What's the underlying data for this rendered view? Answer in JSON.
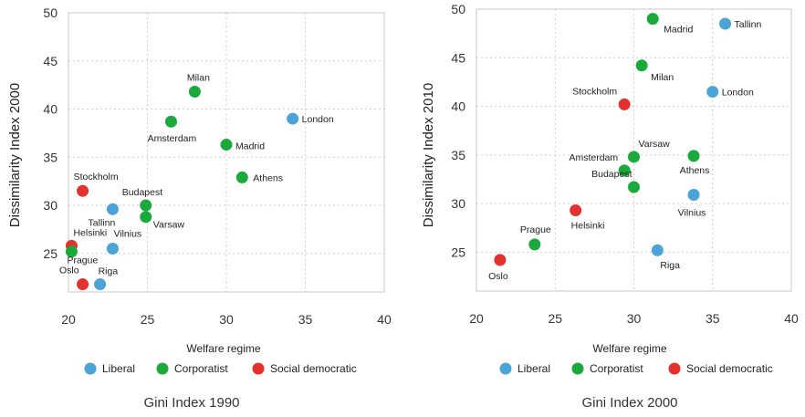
{
  "colors": {
    "Liberal": "#4ba3d6",
    "Corporatist": "#1aaa3b",
    "Social democratic": "#e3312d"
  },
  "legend": {
    "title": "Welfare regime",
    "items": [
      {
        "name": "Liberal",
        "color": "#4ba3d6"
      },
      {
        "name": "Corporatist",
        "color": "#1aaa3b"
      },
      {
        "name": "Social democratic",
        "color": "#e3312d"
      }
    ]
  },
  "chart_data": [
    {
      "type": "scatter",
      "title": "Gini Index 1990",
      "xlabel": "",
      "ylabel": "Dissimilarity Index 2000",
      "xlim": [
        20,
        40
      ],
      "ylim": [
        21,
        50
      ],
      "xticks": [
        20,
        25,
        30,
        35,
        40
      ],
      "yticks": [
        25,
        30,
        35,
        40,
        45,
        50
      ],
      "grid": true,
      "points": [
        {
          "label": "Milan",
          "x": 28.0,
          "y": 41.8,
          "regime": "Corporatist"
        },
        {
          "label": "Amsterdam",
          "x": 26.5,
          "y": 38.7,
          "regime": "Corporatist"
        },
        {
          "label": "London",
          "x": 34.2,
          "y": 39.0,
          "regime": "Liberal"
        },
        {
          "label": "Madrid",
          "x": 30.0,
          "y": 36.3,
          "regime": "Corporatist"
        },
        {
          "label": "Athens",
          "x": 31.0,
          "y": 32.9,
          "regime": "Corporatist"
        },
        {
          "label": "Stockholm",
          "x": 20.9,
          "y": 31.5,
          "regime": "Social democratic"
        },
        {
          "label": "Budapest",
          "x": 24.9,
          "y": 30.0,
          "regime": "Corporatist"
        },
        {
          "label": "Tallinn",
          "x": 22.8,
          "y": 29.6,
          "regime": "Liberal"
        },
        {
          "label": "Varsaw",
          "x": 24.9,
          "y": 28.8,
          "regime": "Corporatist"
        },
        {
          "label": "Vilnius",
          "x": 22.8,
          "y": 25.5,
          "regime": "Liberal"
        },
        {
          "label": "Helsinki",
          "x": 20.2,
          "y": 25.8,
          "regime": "Social democratic"
        },
        {
          "label": "Prague",
          "x": 20.2,
          "y": 25.2,
          "regime": "Corporatist"
        },
        {
          "label": "Oslo",
          "x": 20.9,
          "y": 21.8,
          "regime": "Social democratic"
        },
        {
          "label": "Riga",
          "x": 22.0,
          "y": 21.8,
          "regime": "Liberal"
        }
      ]
    },
    {
      "type": "scatter",
      "title": "Gini Index 2000",
      "xlabel": "",
      "ylabel": "Dissimilarity Index 2010",
      "xlim": [
        20,
        40
      ],
      "ylim": [
        21,
        50
      ],
      "xticks": [
        20,
        25,
        30,
        35,
        40
      ],
      "yticks": [
        25,
        30,
        35,
        40,
        45,
        50
      ],
      "grid": true,
      "points": [
        {
          "label": "Madrid",
          "x": 31.2,
          "y": 49.0,
          "regime": "Corporatist"
        },
        {
          "label": "Tallinn",
          "x": 35.8,
          "y": 48.5,
          "regime": "Liberal"
        },
        {
          "label": "Milan",
          "x": 30.5,
          "y": 44.2,
          "regime": "Corporatist"
        },
        {
          "label": "London",
          "x": 35.0,
          "y": 41.5,
          "regime": "Liberal"
        },
        {
          "label": "Stockholm",
          "x": 29.4,
          "y": 40.2,
          "regime": "Social democratic"
        },
        {
          "label": "Varsaw",
          "x": 30.0,
          "y": 34.8,
          "regime": "Corporatist"
        },
        {
          "label": "Athens",
          "x": 33.8,
          "y": 34.9,
          "regime": "Corporatist"
        },
        {
          "label": "Amsterdam",
          "x": 29.4,
          "y": 33.4,
          "regime": "Corporatist"
        },
        {
          "label": "Budapest",
          "x": 30.0,
          "y": 31.7,
          "regime": "Corporatist"
        },
        {
          "label": "Vilnius",
          "x": 33.8,
          "y": 30.9,
          "regime": "Liberal"
        },
        {
          "label": "Helsinki",
          "x": 26.3,
          "y": 29.3,
          "regime": "Social democratic"
        },
        {
          "label": "Prague",
          "x": 23.7,
          "y": 25.8,
          "regime": "Corporatist"
        },
        {
          "label": "Riga",
          "x": 31.5,
          "y": 25.2,
          "regime": "Liberal"
        },
        {
          "label": "Oslo",
          "x": 21.5,
          "y": 24.2,
          "regime": "Social democratic"
        }
      ]
    }
  ]
}
